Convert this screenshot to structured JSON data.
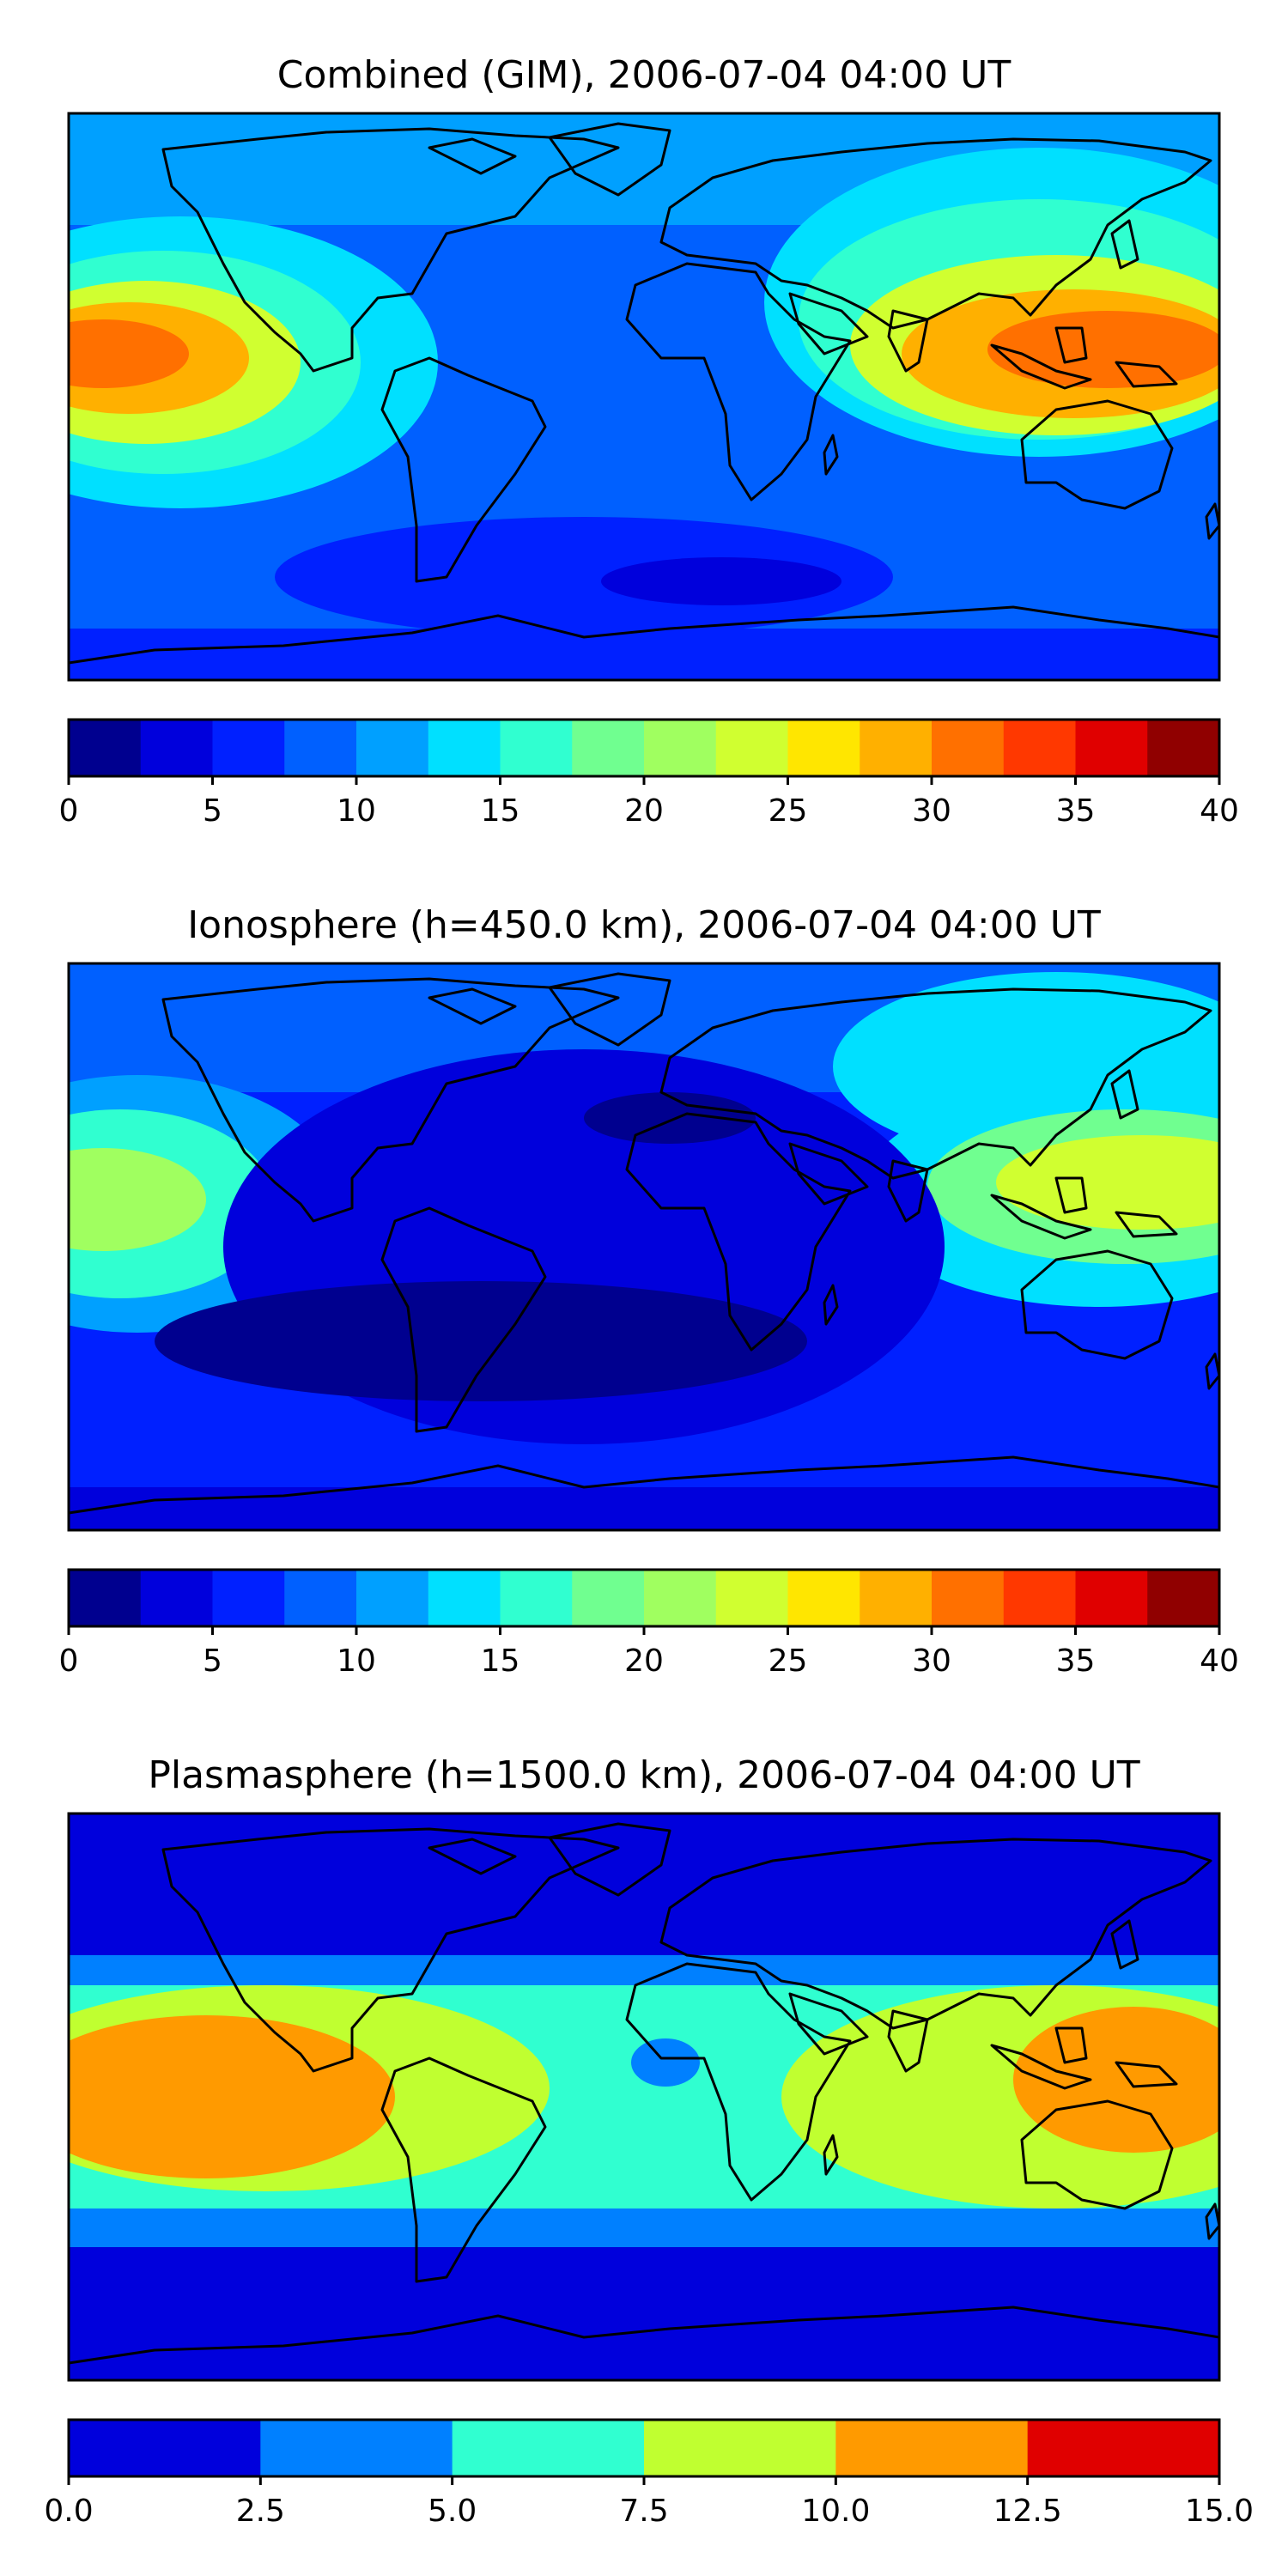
{
  "chart_data": [
    {
      "type": "heatmap",
      "title": "Combined (GIM), 2006-07-04 04:00 UT",
      "colorbar": {
        "ticks": [
          "0",
          "5",
          "10",
          "15",
          "20",
          "25",
          "30",
          "35",
          "40"
        ],
        "levels": [
          0,
          2.5,
          5,
          7.5,
          10,
          12.5,
          15,
          17.5,
          20,
          22.5,
          25,
          27.5,
          30,
          32.5,
          35,
          37.5,
          40
        ],
        "range": [
          0,
          40
        ]
      },
      "colors": [
        "#00008f",
        "#0000dc",
        "#0020ff",
        "#0060ff",
        "#00a0ff",
        "#00e0ff",
        "#30ffd0",
        "#70ff90",
        "#a0ff60",
        "#d0ff30",
        "#ffe600",
        "#ffb000",
        "#ff7000",
        "#ff3800",
        "#e00000",
        "#900000"
      ],
      "field_features": [
        {
          "name": "peak-east-pacific",
          "lon": -170,
          "lat": 5,
          "value": 32
        },
        {
          "name": "peak-west-pacific",
          "lon": 150,
          "lat": 5,
          "value": 33
        },
        {
          "name": "minimum-south-atlantic",
          "lon": 20,
          "lat": -45,
          "value": 2
        }
      ]
    },
    {
      "type": "heatmap",
      "title": "Ionosphere  (h=450.0 km), 2006-07-04 04:00 UT",
      "colorbar": {
        "ticks": [
          "0",
          "5",
          "10",
          "15",
          "20",
          "25",
          "30",
          "35",
          "40"
        ],
        "levels": [
          0,
          2.5,
          5,
          7.5,
          10,
          12.5,
          15,
          17.5,
          20,
          22.5,
          25,
          27.5,
          30,
          32.5,
          35,
          37.5,
          40
        ],
        "range": [
          0,
          40
        ]
      },
      "colors": [
        "#00008f",
        "#0000dc",
        "#0020ff",
        "#0060ff",
        "#00a0ff",
        "#00e0ff",
        "#30ffd0",
        "#70ff90",
        "#a0ff60",
        "#d0ff30",
        "#ffe600",
        "#ffb000",
        "#ff7000",
        "#ff3800",
        "#e00000",
        "#900000"
      ],
      "field_features": [
        {
          "name": "peak-east-pacific",
          "lon": -175,
          "lat": 5,
          "value": 22
        },
        {
          "name": "peak-west-pacific",
          "lon": 160,
          "lat": 10,
          "value": 23
        },
        {
          "name": "minimum-atlantic",
          "lon": -10,
          "lat": -20,
          "value": 2
        }
      ]
    },
    {
      "type": "heatmap",
      "title": "Plasmasphere (h=1500.0 km), 2006-07-04 04:00 UT",
      "colorbar": {
        "ticks": [
          "0.0",
          "2.5",
          "5.0",
          "7.5",
          "10.0",
          "12.5",
          "15.0"
        ],
        "levels": [
          0,
          2.5,
          5,
          7.5,
          10,
          12.5,
          15
        ],
        "range": [
          0,
          15
        ]
      },
      "colors": [
        "#0000dc",
        "#0080ff",
        "#30ffd0",
        "#c0ff30",
        "#ff9a00",
        "#e00000"
      ],
      "field_features": [
        {
          "name": "peak-east-pacific",
          "lon": -145,
          "lat": -5,
          "value": 11
        },
        {
          "name": "peak-west-pacific",
          "lon": 160,
          "lat": 10,
          "value": 11
        },
        {
          "name": "high-latitude-background",
          "lon": 0,
          "lat": 70,
          "value": 1
        }
      ]
    }
  ]
}
